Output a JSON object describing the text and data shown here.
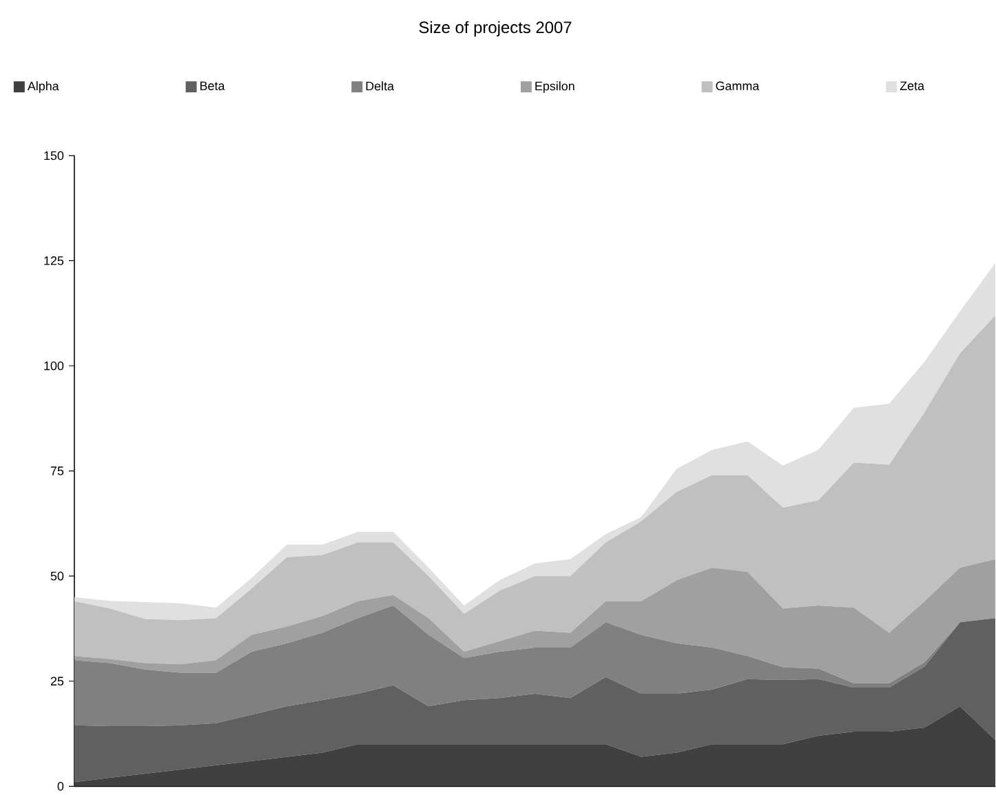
{
  "chart_data": {
    "type": "area",
    "title": "Size of projects 2007",
    "stacked": true,
    "legend": "top",
    "tick_labels": "y",
    "categories": [
      null,
      null,
      null,
      null,
      null,
      null,
      null,
      null,
      null,
      null,
      null,
      null,
      null,
      null,
      null,
      null,
      null,
      null,
      null,
      null,
      null,
      null,
      null,
      null,
      null,
      null,
      null
    ],
    "ylim": [
      0,
      150
    ],
    "yticks": [
      0,
      25,
      50,
      75,
      100,
      125,
      150
    ],
    "series": [
      {
        "name": "Alpha",
        "color": "#404040",
        "values": [
          1,
          2,
          3,
          4,
          5,
          6,
          7,
          8,
          10,
          10,
          10,
          10,
          10,
          10,
          10,
          10,
          7,
          8,
          10,
          10,
          10,
          12,
          13,
          13,
          14,
          19,
          11
        ]
      },
      {
        "name": "Beta",
        "color": "#606060",
        "values": [
          13.5,
          12.3,
          11.3,
          10.5,
          10,
          11,
          12,
          12.5,
          12,
          14,
          9,
          10.5,
          11,
          12,
          11,
          16,
          15,
          14,
          13,
          15.5,
          15.3,
          13.5,
          10.5,
          10.5,
          14.5,
          20,
          29
        ]
      },
      {
        "name": "Delta",
        "color": "#808080",
        "values": [
          15.5,
          15,
          13.5,
          12.5,
          12,
          15,
          15,
          16,
          18,
          19,
          17,
          10,
          11,
          11,
          12,
          13,
          14,
          12,
          10,
          5.5,
          3,
          2.5,
          1,
          1,
          1,
          0,
          0
        ]
      },
      {
        "name": "Epsilon",
        "color": "#a0a0a0",
        "values": [
          1,
          1,
          1.5,
          2,
          3,
          4,
          4,
          4,
          4,
          2.5,
          4,
          1.5,
          2.5,
          4,
          3.5,
          5,
          8,
          15,
          19,
          20,
          14,
          15,
          18,
          12,
          14.5,
          13,
          14
        ]
      },
      {
        "name": "Gamma",
        "color": "#c0c0c0",
        "values": [
          13,
          12,
          10.5,
          10.5,
          10,
          11,
          16.5,
          14.5,
          14,
          12.5,
          10,
          9,
          12,
          13,
          13.5,
          14,
          19,
          21,
          22,
          23,
          24,
          25,
          34.5,
          40,
          45,
          51,
          58
        ]
      },
      {
        "name": "Zeta",
        "color": "#e0e0e0",
        "values": [
          1,
          1.8,
          4,
          4,
          2.5,
          2.5,
          3,
          2.5,
          2.5,
          2.5,
          2,
          2,
          2.5,
          3,
          4,
          2,
          1,
          5.5,
          6,
          8,
          10,
          12,
          13,
          14.5,
          12,
          10,
          12.5
        ]
      }
    ]
  }
}
